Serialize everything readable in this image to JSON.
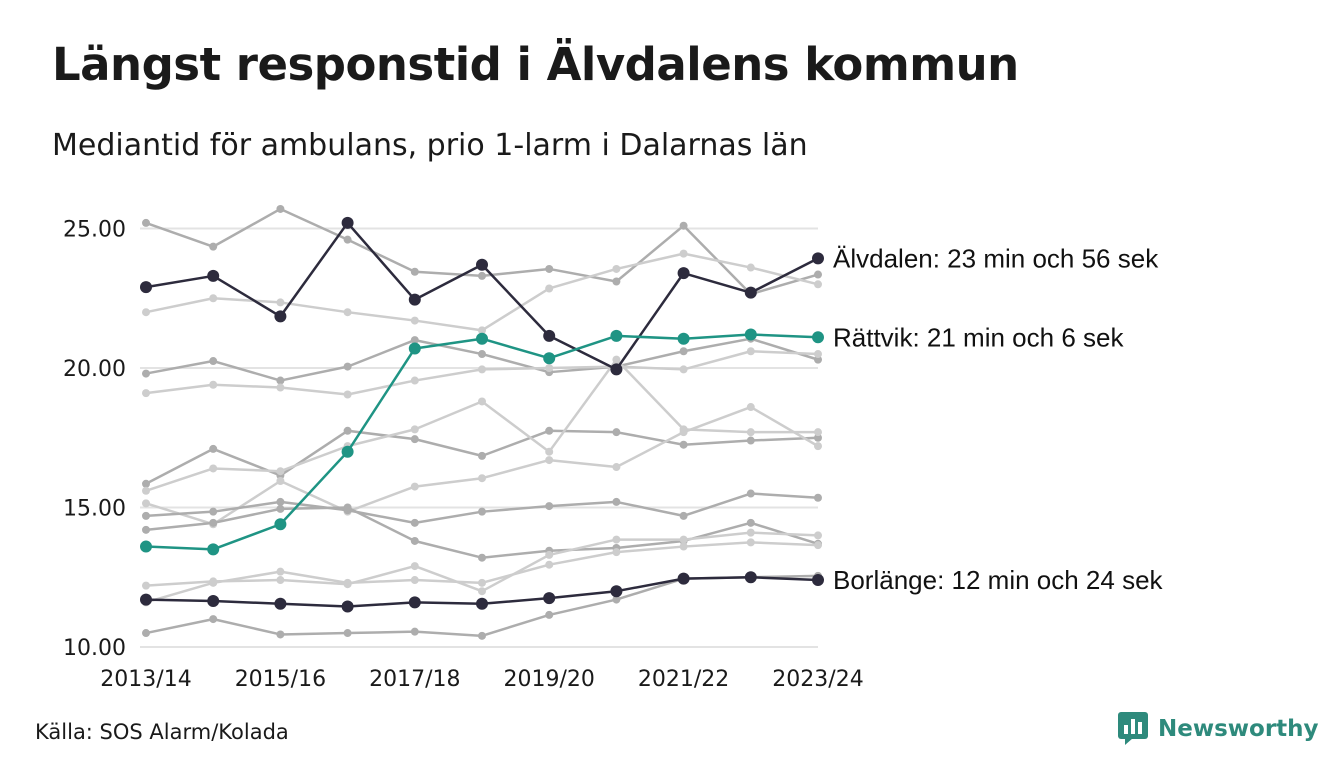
{
  "header": {
    "title": "Längst responstid i Älvdalens kommun",
    "subtitle": "Mediantid för ambulans, prio 1-larm i Dalarnas län"
  },
  "footer": {
    "source": "Källa: SOS Alarm/Kolada",
    "brand": "Newsworthy",
    "brand_icon": "newsworthy-logo-icon"
  },
  "colors": {
    "dark": "#2d2b3d",
    "accent": "#1f9484",
    "background_line": "#c2c2c2",
    "grid": "#e3e3e3",
    "brand": "#2e8a7c"
  },
  "chart_data": {
    "type": "line",
    "x": [
      "2013/14",
      "2014/15",
      "2015/16",
      "2016/17",
      "2017/18",
      "2018/19",
      "2019/20",
      "2020/21",
      "2021/22",
      "2022/23",
      "2023/24"
    ],
    "xticks": [
      "2013/14",
      "2015/16",
      "2017/18",
      "2019/20",
      "2021/22",
      "2023/24"
    ],
    "yticks": [
      "10.00",
      "15.00",
      "20.00",
      "25.00"
    ],
    "ylim": [
      10,
      25.5
    ],
    "grid": true,
    "series": [
      {
        "name": "Älvdalen",
        "label": "Älvdalen: 23 min och 56 sek",
        "highlight": "dark",
        "values": [
          22.9,
          23.3,
          21.85,
          25.2,
          22.45,
          23.7,
          21.15,
          19.95,
          23.4,
          22.7,
          23.93
        ]
      },
      {
        "name": "Rättvik",
        "label": "Rättvik: 21 min och 6 sek",
        "highlight": "accent",
        "values": [
          13.6,
          13.5,
          14.4,
          17.0,
          20.7,
          21.05,
          20.35,
          21.15,
          21.05,
          21.2,
          21.1
        ]
      },
      {
        "name": "Borlänge",
        "label": "Borlänge: 12 min och 24 sek",
        "highlight": "dark",
        "values": [
          11.7,
          11.65,
          11.55,
          11.45,
          11.6,
          11.55,
          11.75,
          12.0,
          12.45,
          12.5,
          12.4
        ]
      },
      {
        "values": [
          25.2,
          24.35,
          25.7,
          24.6,
          23.45,
          23.3,
          23.55,
          23.1,
          25.1,
          22.65,
          23.35
        ],
        "shade": "mid"
      },
      {
        "values": [
          22.0,
          22.5,
          22.35,
          22.0,
          21.7,
          21.35,
          22.85,
          23.55,
          24.1,
          23.6,
          23.0
        ],
        "shade": "light"
      },
      {
        "values": [
          19.8,
          20.25,
          19.55,
          20.05,
          21.0,
          20.5,
          19.85,
          20.05,
          20.6,
          21.05,
          20.3
        ],
        "shade": "mid"
      },
      {
        "values": [
          19.1,
          19.4,
          19.3,
          19.05,
          19.55,
          19.95,
          20.0,
          20.05,
          19.95,
          20.6,
          20.5
        ],
        "shade": "light"
      },
      {
        "values": [
          15.85,
          17.1,
          16.15,
          17.75,
          17.45,
          16.85,
          17.75,
          17.7,
          17.25,
          17.4,
          17.5
        ],
        "shade": "mid"
      },
      {
        "values": [
          15.6,
          16.4,
          16.3,
          17.2,
          17.8,
          18.8,
          17.0,
          20.3,
          17.8,
          17.7,
          17.7
        ],
        "shade": "light"
      },
      {
        "values": [
          15.15,
          14.4,
          15.95,
          14.85,
          15.75,
          16.05,
          16.7,
          16.45,
          17.7,
          18.6,
          17.2
        ],
        "shade": "light"
      },
      {
        "values": [
          14.7,
          14.85,
          15.2,
          14.9,
          14.45,
          14.85,
          15.05,
          15.2,
          14.7,
          15.5,
          15.35
        ],
        "shade": "mid"
      },
      {
        "values": [
          14.2,
          14.45,
          14.95,
          15.0,
          13.8,
          13.2,
          13.45,
          13.55,
          13.8,
          14.45,
          13.7
        ],
        "shade": "mid"
      },
      {
        "values": [
          12.2,
          12.35,
          12.4,
          12.25,
          12.9,
          12.0,
          13.3,
          13.85,
          13.85,
          14.1,
          14.0
        ],
        "shade": "light"
      },
      {
        "values": [
          11.6,
          12.3,
          12.7,
          12.3,
          12.4,
          12.3,
          12.95,
          13.4,
          13.6,
          13.75,
          13.65
        ],
        "shade": "light"
      },
      {
        "values": [
          10.5,
          11.0,
          10.45,
          10.5,
          10.55,
          10.4,
          11.15,
          11.7,
          12.45,
          12.5,
          12.55
        ],
        "shade": "mid"
      }
    ]
  }
}
